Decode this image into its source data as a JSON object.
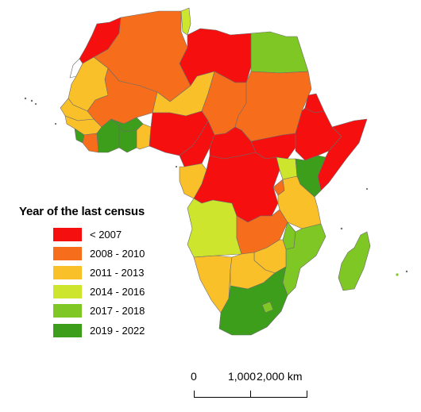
{
  "legend": {
    "title": "Year of the last census",
    "items": [
      {
        "label": "< 2007",
        "color": "#f50f0f"
      },
      {
        "label": "2008 - 2010",
        "color": "#f66e1c"
      },
      {
        "label": "2011 - 2013",
        "color": "#f9c02a"
      },
      {
        "label": "2014 - 2016",
        "color": "#cde52c"
      },
      {
        "label": "2017 - 2018",
        "color": "#7ec724"
      },
      {
        "label": "2019 - 2022",
        "color": "#3d9e1c"
      }
    ]
  },
  "scale": {
    "label_0": "0",
    "label_1": "1,000",
    "label_2": "2,000 km"
  },
  "regions": [
    {
      "name": "Morocco",
      "color": "#f50f0f"
    },
    {
      "name": "Western Sahara",
      "color": "#ffffff"
    },
    {
      "name": "Algeria",
      "color": "#f66e1c"
    },
    {
      "name": "Tunisia",
      "color": "#cde52c"
    },
    {
      "name": "Libya",
      "color": "#f50f0f"
    },
    {
      "name": "Egypt",
      "color": "#7ec724"
    },
    {
      "name": "Mauritania",
      "color": "#f9c02a"
    },
    {
      "name": "Mali",
      "color": "#f66e1c"
    },
    {
      "name": "Niger",
      "color": "#f9c02a"
    },
    {
      "name": "Chad",
      "color": "#f66e1c"
    },
    {
      "name": "Sudan",
      "color": "#f66e1c"
    },
    {
      "name": "South Sudan",
      "color": "#f50f0f"
    },
    {
      "name": "Ethiopia",
      "color": "#f50f0f"
    },
    {
      "name": "Eritrea",
      "color": "#f50f0f"
    },
    {
      "name": "Somalia",
      "color": "#f50f0f"
    },
    {
      "name": "Senegal",
      "color": "#f9c02a"
    },
    {
      "name": "Guinea",
      "color": "#f9c02a"
    },
    {
      "name": "Sierra Leone",
      "color": "#3d9e1c"
    },
    {
      "name": "Liberia",
      "color": "#f66e1c"
    },
    {
      "name": "Ivory Coast",
      "color": "#3d9e1c"
    },
    {
      "name": "Burkina Faso",
      "color": "#3d9e1c"
    },
    {
      "name": "Ghana",
      "color": "#3d9e1c"
    },
    {
      "name": "Togo Benin",
      "color": "#f9c02a"
    },
    {
      "name": "Nigeria",
      "color": "#f50f0f"
    },
    {
      "name": "Cameroon",
      "color": "#f50f0f"
    },
    {
      "name": "Central African Republic",
      "color": "#f50f0f"
    },
    {
      "name": "Gabon Congo",
      "color": "#f9c02a"
    },
    {
      "name": "DR Congo",
      "color": "#f50f0f"
    },
    {
      "name": "Uganda",
      "color": "#cde52c"
    },
    {
      "name": "Kenya",
      "color": "#3d9e1c"
    },
    {
      "name": "Rwanda Burundi",
      "color": "#f66e1c"
    },
    {
      "name": "Tanzania",
      "color": "#f9c02a"
    },
    {
      "name": "Angola",
      "color": "#cde52c"
    },
    {
      "name": "Zambia",
      "color": "#f66e1c"
    },
    {
      "name": "Malawi",
      "color": "#7ec724"
    },
    {
      "name": "Mozambique",
      "color": "#7ec724"
    },
    {
      "name": "Namibia",
      "color": "#f9c02a"
    },
    {
      "name": "Botswana",
      "color": "#f9c02a"
    },
    {
      "name": "Zimbabwe",
      "color": "#f9c02a"
    },
    {
      "name": "South Africa",
      "color": "#3d9e1c"
    },
    {
      "name": "Lesotho",
      "color": "#7ec724"
    },
    {
      "name": "Madagascar",
      "color": "#7ec724"
    }
  ]
}
